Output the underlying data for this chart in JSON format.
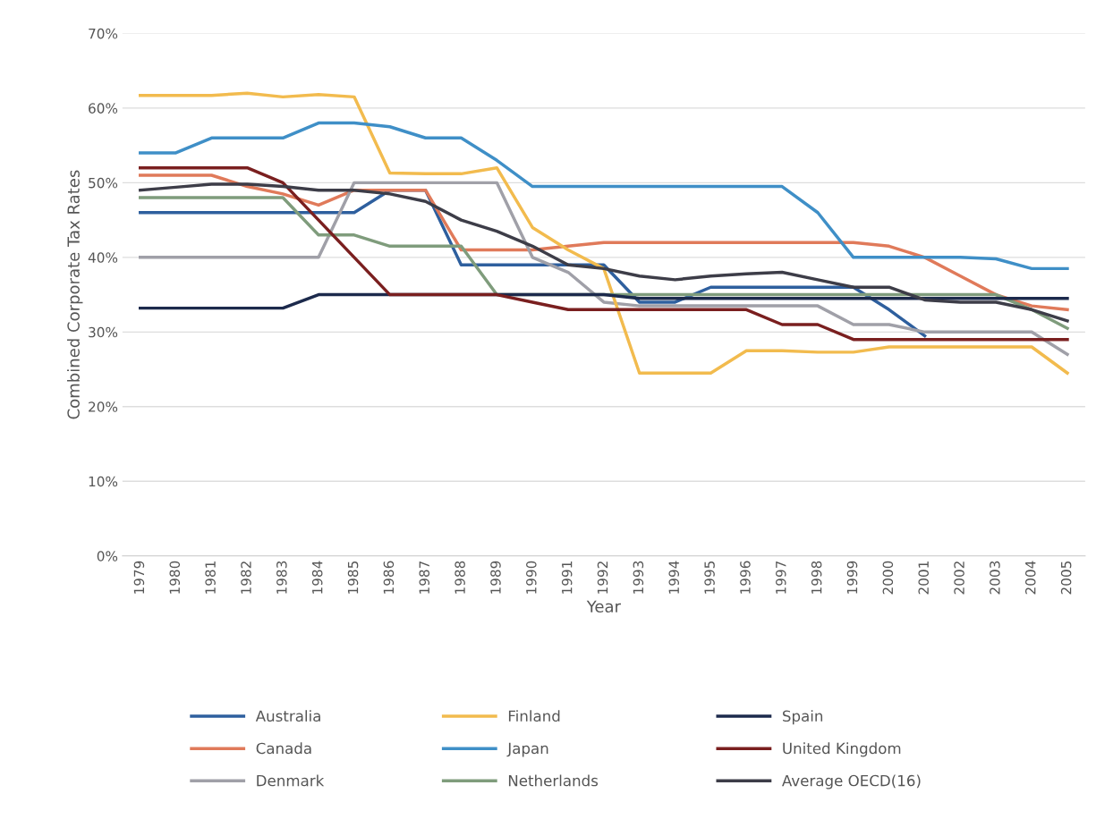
{
  "chart_data": {
    "type": "line",
    "xlabel": "Year",
    "ylabel": "Combined Corporate Tax Rates",
    "categories": [
      "1979",
      "1980",
      "1981",
      "1982",
      "1983",
      "1984",
      "1985",
      "1986",
      "1987",
      "1988",
      "1989",
      "1990",
      "1991",
      "1992",
      "1993",
      "1994",
      "1995",
      "1996",
      "1997",
      "1998",
      "1999",
      "2000",
      "2001",
      "2002",
      "2003",
      "2004",
      "2005"
    ],
    "series": [
      {
        "name": "Australia",
        "color": "#2e5f9e",
        "values": [
          46,
          46,
          46,
          46,
          46,
          46,
          46,
          49,
          49,
          39,
          39,
          39,
          39,
          39,
          34,
          34,
          36,
          36,
          36,
          36,
          36,
          33,
          29.5,
          null,
          null,
          null,
          null
        ]
      },
      {
        "name": "Canada",
        "color": "#e07a5a",
        "values": [
          51,
          51,
          51,
          49.5,
          48.5,
          47,
          49,
          49,
          49,
          41,
          41,
          41,
          41.5,
          42,
          42,
          42,
          42,
          42,
          42,
          42,
          42,
          41.5,
          40,
          37.5,
          35,
          33.5,
          33
        ]
      },
      {
        "name": "Denmark",
        "color": "#a0a0a8",
        "values": [
          40,
          40,
          40,
          40,
          40,
          40,
          50,
          50,
          50,
          50,
          50,
          40,
          38,
          34,
          33.5,
          33.5,
          33.5,
          33.5,
          33.5,
          33.5,
          31,
          31,
          30,
          30,
          30,
          30,
          27
        ]
      },
      {
        "name": "Finland",
        "color": "#f2bb4e",
        "values": [
          61.7,
          61.7,
          61.7,
          62,
          61.5,
          61.8,
          61.5,
          51.3,
          51.2,
          51.2,
          52,
          44,
          41,
          38.5,
          24.5,
          24.5,
          24.5,
          27.5,
          27.5,
          27.3,
          27.3,
          28,
          28,
          28,
          28,
          28,
          24.5
        ]
      },
      {
        "name": "Japan",
        "color": "#3f8fc7",
        "values": [
          54,
          54,
          56,
          56,
          56,
          58,
          58,
          57.5,
          56,
          56,
          53,
          49.5,
          49.5,
          49.5,
          49.5,
          49.5,
          49.5,
          49.5,
          49.5,
          46,
          40,
          40,
          40,
          40,
          39.8,
          38.5,
          38.5
        ]
      },
      {
        "name": "Netherlands",
        "color": "#7f9c7c",
        "values": [
          48,
          48,
          48,
          48,
          48,
          43,
          43,
          41.5,
          41.5,
          41.5,
          35,
          35,
          35,
          35,
          35,
          35,
          35,
          35,
          35,
          35,
          35,
          35,
          35,
          35,
          35,
          33,
          30.5
        ]
      },
      {
        "name": "Spain",
        "color": "#1c2a4c",
        "values": [
          33.2,
          33.2,
          33.2,
          33.2,
          33.2,
          35,
          35,
          35,
          35,
          35,
          35,
          35,
          35,
          35,
          34.5,
          34.5,
          34.5,
          34.5,
          34.5,
          34.5,
          34.5,
          34.5,
          34.5,
          34.5,
          34.5,
          34.5,
          34.5
        ]
      },
      {
        "name": "United Kingdom",
        "color": "#7a1f1f",
        "values": [
          52,
          52,
          52,
          52,
          50,
          45,
          40,
          35,
          35,
          35,
          35,
          34,
          33,
          33,
          33,
          33,
          33,
          33,
          31,
          31,
          29,
          29,
          29,
          29,
          29,
          29,
          29
        ]
      },
      {
        "name": "Average OECD(16)",
        "color": "#3d3d48",
        "values": [
          49,
          49.4,
          49.8,
          49.8,
          49.5,
          49,
          49,
          48.5,
          47.5,
          45,
          43.5,
          41.5,
          39,
          38.5,
          37.5,
          37,
          37.5,
          37.8,
          38,
          37,
          36,
          36,
          34.3,
          34,
          34,
          33,
          31.5
        ]
      }
    ],
    "ylim": [
      0,
      70
    ],
    "yticks": [
      {
        "value": 0,
        "label": "0%"
      },
      {
        "value": 10,
        "label": "10%"
      },
      {
        "value": 20,
        "label": "20%"
      },
      {
        "value": 30,
        "label": "30%"
      },
      {
        "value": 40,
        "label": "40%"
      },
      {
        "value": 50,
        "label": "50%"
      },
      {
        "value": 60,
        "label": "60%"
      },
      {
        "value": 70,
        "label": "70%"
      }
    ],
    "grid": "y",
    "legend": "bottom",
    "marker": "none",
    "line_style": "solid"
  }
}
